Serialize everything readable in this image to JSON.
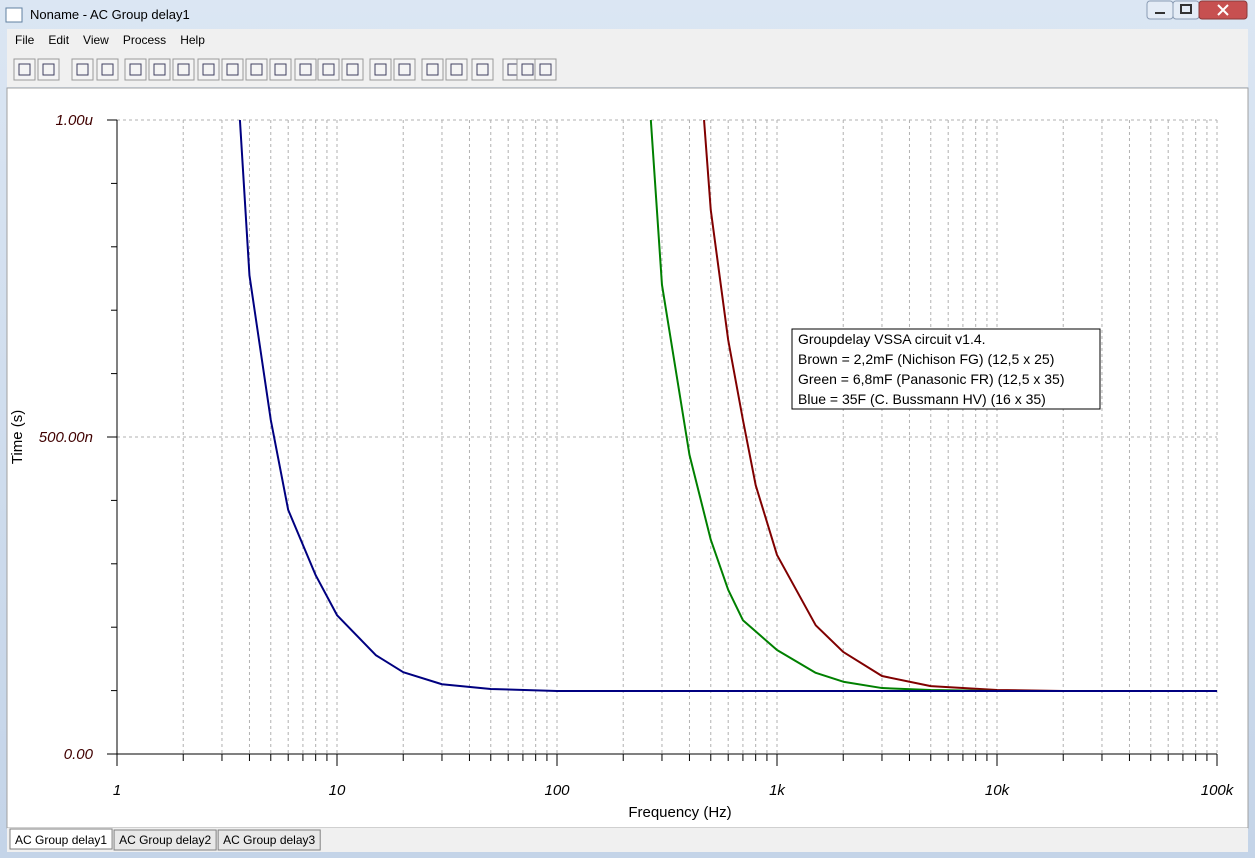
{
  "window": {
    "title": "Noname - AC Group delay1",
    "menu": [
      "File",
      "Edit",
      "View",
      "Process",
      "Help"
    ],
    "tabs": [
      "AC Group delay1",
      "AC Group delay2",
      "AC Group delay3"
    ]
  },
  "chart_data": {
    "type": "line",
    "xlabel": "Frequency (Hz)",
    "ylabel": "Time (s)",
    "xscale": "log",
    "grid": true,
    "xlim": [
      1,
      100000
    ],
    "xticks": [
      1,
      10,
      100,
      {
        "value": 1000,
        "label": "1k"
      },
      {
        "value": 10000,
        "label": "10k"
      },
      {
        "value": 100000,
        "label": "100k"
      }
    ],
    "ylim": [
      0,
      1e-06
    ],
    "yticks": [
      {
        "value": 0,
        "label": "0.00"
      },
      {
        "value": 5e-07,
        "label": "500.00n"
      },
      {
        "value": 1e-06,
        "label": "1.00u"
      }
    ],
    "annotation": [
      "Groupdelay VSSA circuit v1.4.",
      "Brown = 2,2mF (Nichison FG) (12,5 x 25)",
      "Green = 6,8mF (Panasonic FR) (12,5 x 35)",
      "Blue = 35F (C. Bussmann HV) (16 x 35)"
    ],
    "series": [
      {
        "color": "#800000",
        "x": [
          466,
          500,
          600,
          700,
          800,
          1000,
          1500,
          2000,
          3000,
          5000,
          10000,
          20000,
          100000
        ],
        "values": [
          1e-06,
          8.58e-07,
          6.53e-07,
          5.27e-07,
          4.24e-07,
          3.14e-07,
          2.03e-07,
          1.61e-07,
          1.23e-07,
          1.07e-07,
          1.01e-07,
          9.94e-08,
          9.94e-08
        ]
      },
      {
        "color": "#008000",
        "x": [
          267,
          300,
          400,
          500,
          600,
          700,
          1000,
          1500,
          2000,
          3000,
          5000,
          10000,
          100000
        ],
        "values": [
          1e-06,
          7.4e-07,
          4.72e-07,
          3.38e-07,
          2.59e-07,
          2.11e-07,
          1.64e-07,
          1.28e-07,
          1.14e-07,
          1.04e-07,
          1.01e-07,
          9.94e-08,
          9.94e-08
        ]
      },
      {
        "color": "#000080",
        "x": [
          3.62,
          4,
          5,
          6,
          8,
          10,
          15,
          20,
          30,
          50,
          100,
          1000,
          100000
        ],
        "values": [
          1e-06,
          7.55e-07,
          5.27e-07,
          3.85e-07,
          2.82e-07,
          2.19e-07,
          1.56e-07,
          1.29e-07,
          1.1e-07,
          1.025e-07,
          9.94e-08,
          9.94e-08,
          9.94e-08
        ]
      }
    ]
  }
}
